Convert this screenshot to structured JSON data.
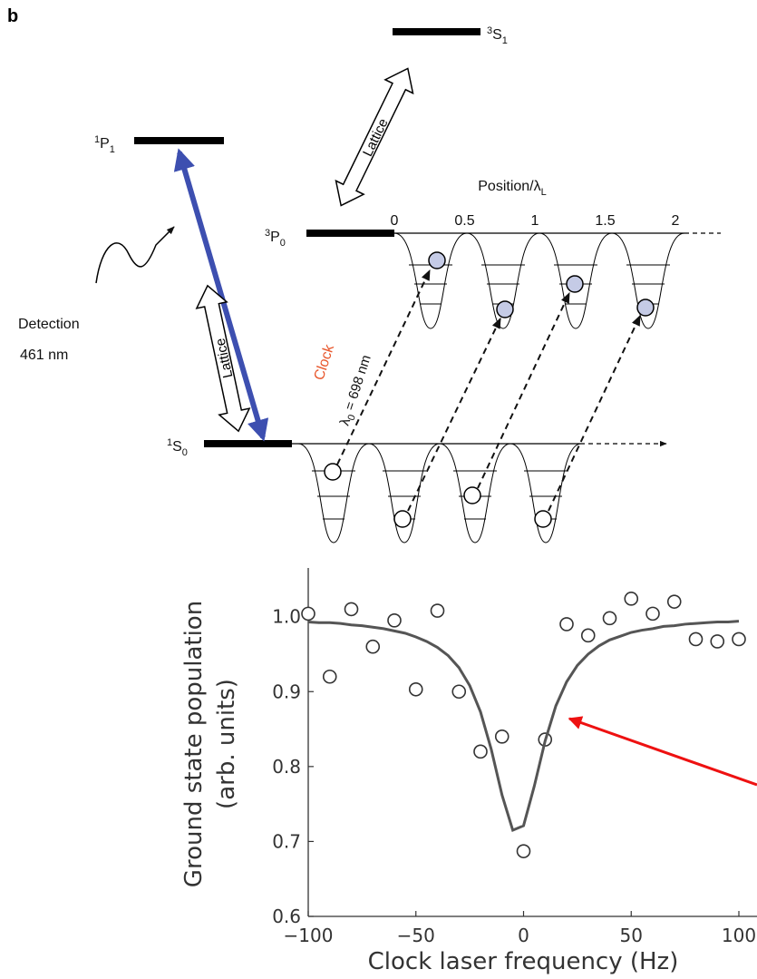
{
  "figure_label": "b",
  "diagram": {
    "levels": [
      {
        "sup": "3",
        "base": "S",
        "sub": "1"
      },
      {
        "sup": "1",
        "base": "P",
        "sub": "1"
      },
      {
        "sup": "3",
        "base": "P",
        "sub": "0"
      },
      {
        "sup": "1",
        "base": "S",
        "sub": "0"
      }
    ],
    "lattice_labels": [
      "Lattice",
      "Lattice"
    ],
    "position_label": {
      "text": "Position/λ",
      "sub": "L"
    },
    "position_ticks": [
      0,
      0.5,
      1,
      1.5,
      2
    ],
    "detection": {
      "label": "Detection",
      "wavelength": "461 nm"
    },
    "clock": {
      "label": "Clock",
      "symbol": "λ",
      "sub": "0",
      "rest": " = 698 nm"
    }
  },
  "chart_data": {
    "type": "scatter",
    "xlabel": "Clock laser frequency (Hz)",
    "ylabel": [
      "Ground state population",
      "(arb. units)"
    ],
    "xlim": [
      -100,
      100
    ],
    "ylim": [
      0.6,
      1.065
    ],
    "xticks": [
      {
        "value": -100,
        "label": "−100"
      },
      {
        "value": -50,
        "label": "−50"
      },
      0,
      50,
      100
    ],
    "yticks": [
      0.6,
      0.7,
      0.8,
      0.9,
      {
        "value": 1,
        "label": "1.0"
      }
    ],
    "series": [
      {
        "type": "scatter",
        "color": "#333333",
        "x": [
          -100,
          -90,
          -80,
          -70,
          -60,
          -50,
          -40,
          -30,
          -20,
          -10,
          0,
          10,
          20,
          30,
          40,
          50,
          60,
          70,
          80,
          90,
          100
        ],
        "values": [
          1.004,
          0.92,
          1.01,
          0.96,
          0.995,
          0.903,
          1.008,
          0.9,
          0.82,
          0.84,
          0.687,
          0.836,
          0.99,
          0.975,
          0.998,
          1.024,
          1.004,
          1.02,
          0.97,
          0.967,
          0.97
        ]
      },
      {
        "type": "line",
        "color": "#555555",
        "x": [
          -100,
          -95,
          -90,
          -85,
          -80,
          -75,
          -70,
          -65,
          -60,
          -55,
          -50,
          -45,
          -40,
          -35,
          -30,
          -25,
          -20,
          -15,
          -10,
          -5,
          0,
          5,
          10,
          15,
          20,
          25,
          30,
          35,
          40,
          45,
          50,
          55,
          60,
          65,
          70,
          75,
          80,
          85,
          90,
          95,
          100
        ],
        "values": [
          0.993,
          0.992,
          0.992,
          0.991,
          0.989,
          0.988,
          0.986,
          0.984,
          0.981,
          0.978,
          0.973,
          0.967,
          0.959,
          0.948,
          0.932,
          0.908,
          0.873,
          0.823,
          0.762,
          0.715,
          0.721,
          0.774,
          0.834,
          0.881,
          0.913,
          0.935,
          0.95,
          0.961,
          0.969,
          0.974,
          0.979,
          0.982,
          0.984,
          0.987,
          0.988,
          0.99,
          0.991,
          0.992,
          0.993,
          0.993,
          0.994
        ]
      }
    ]
  }
}
